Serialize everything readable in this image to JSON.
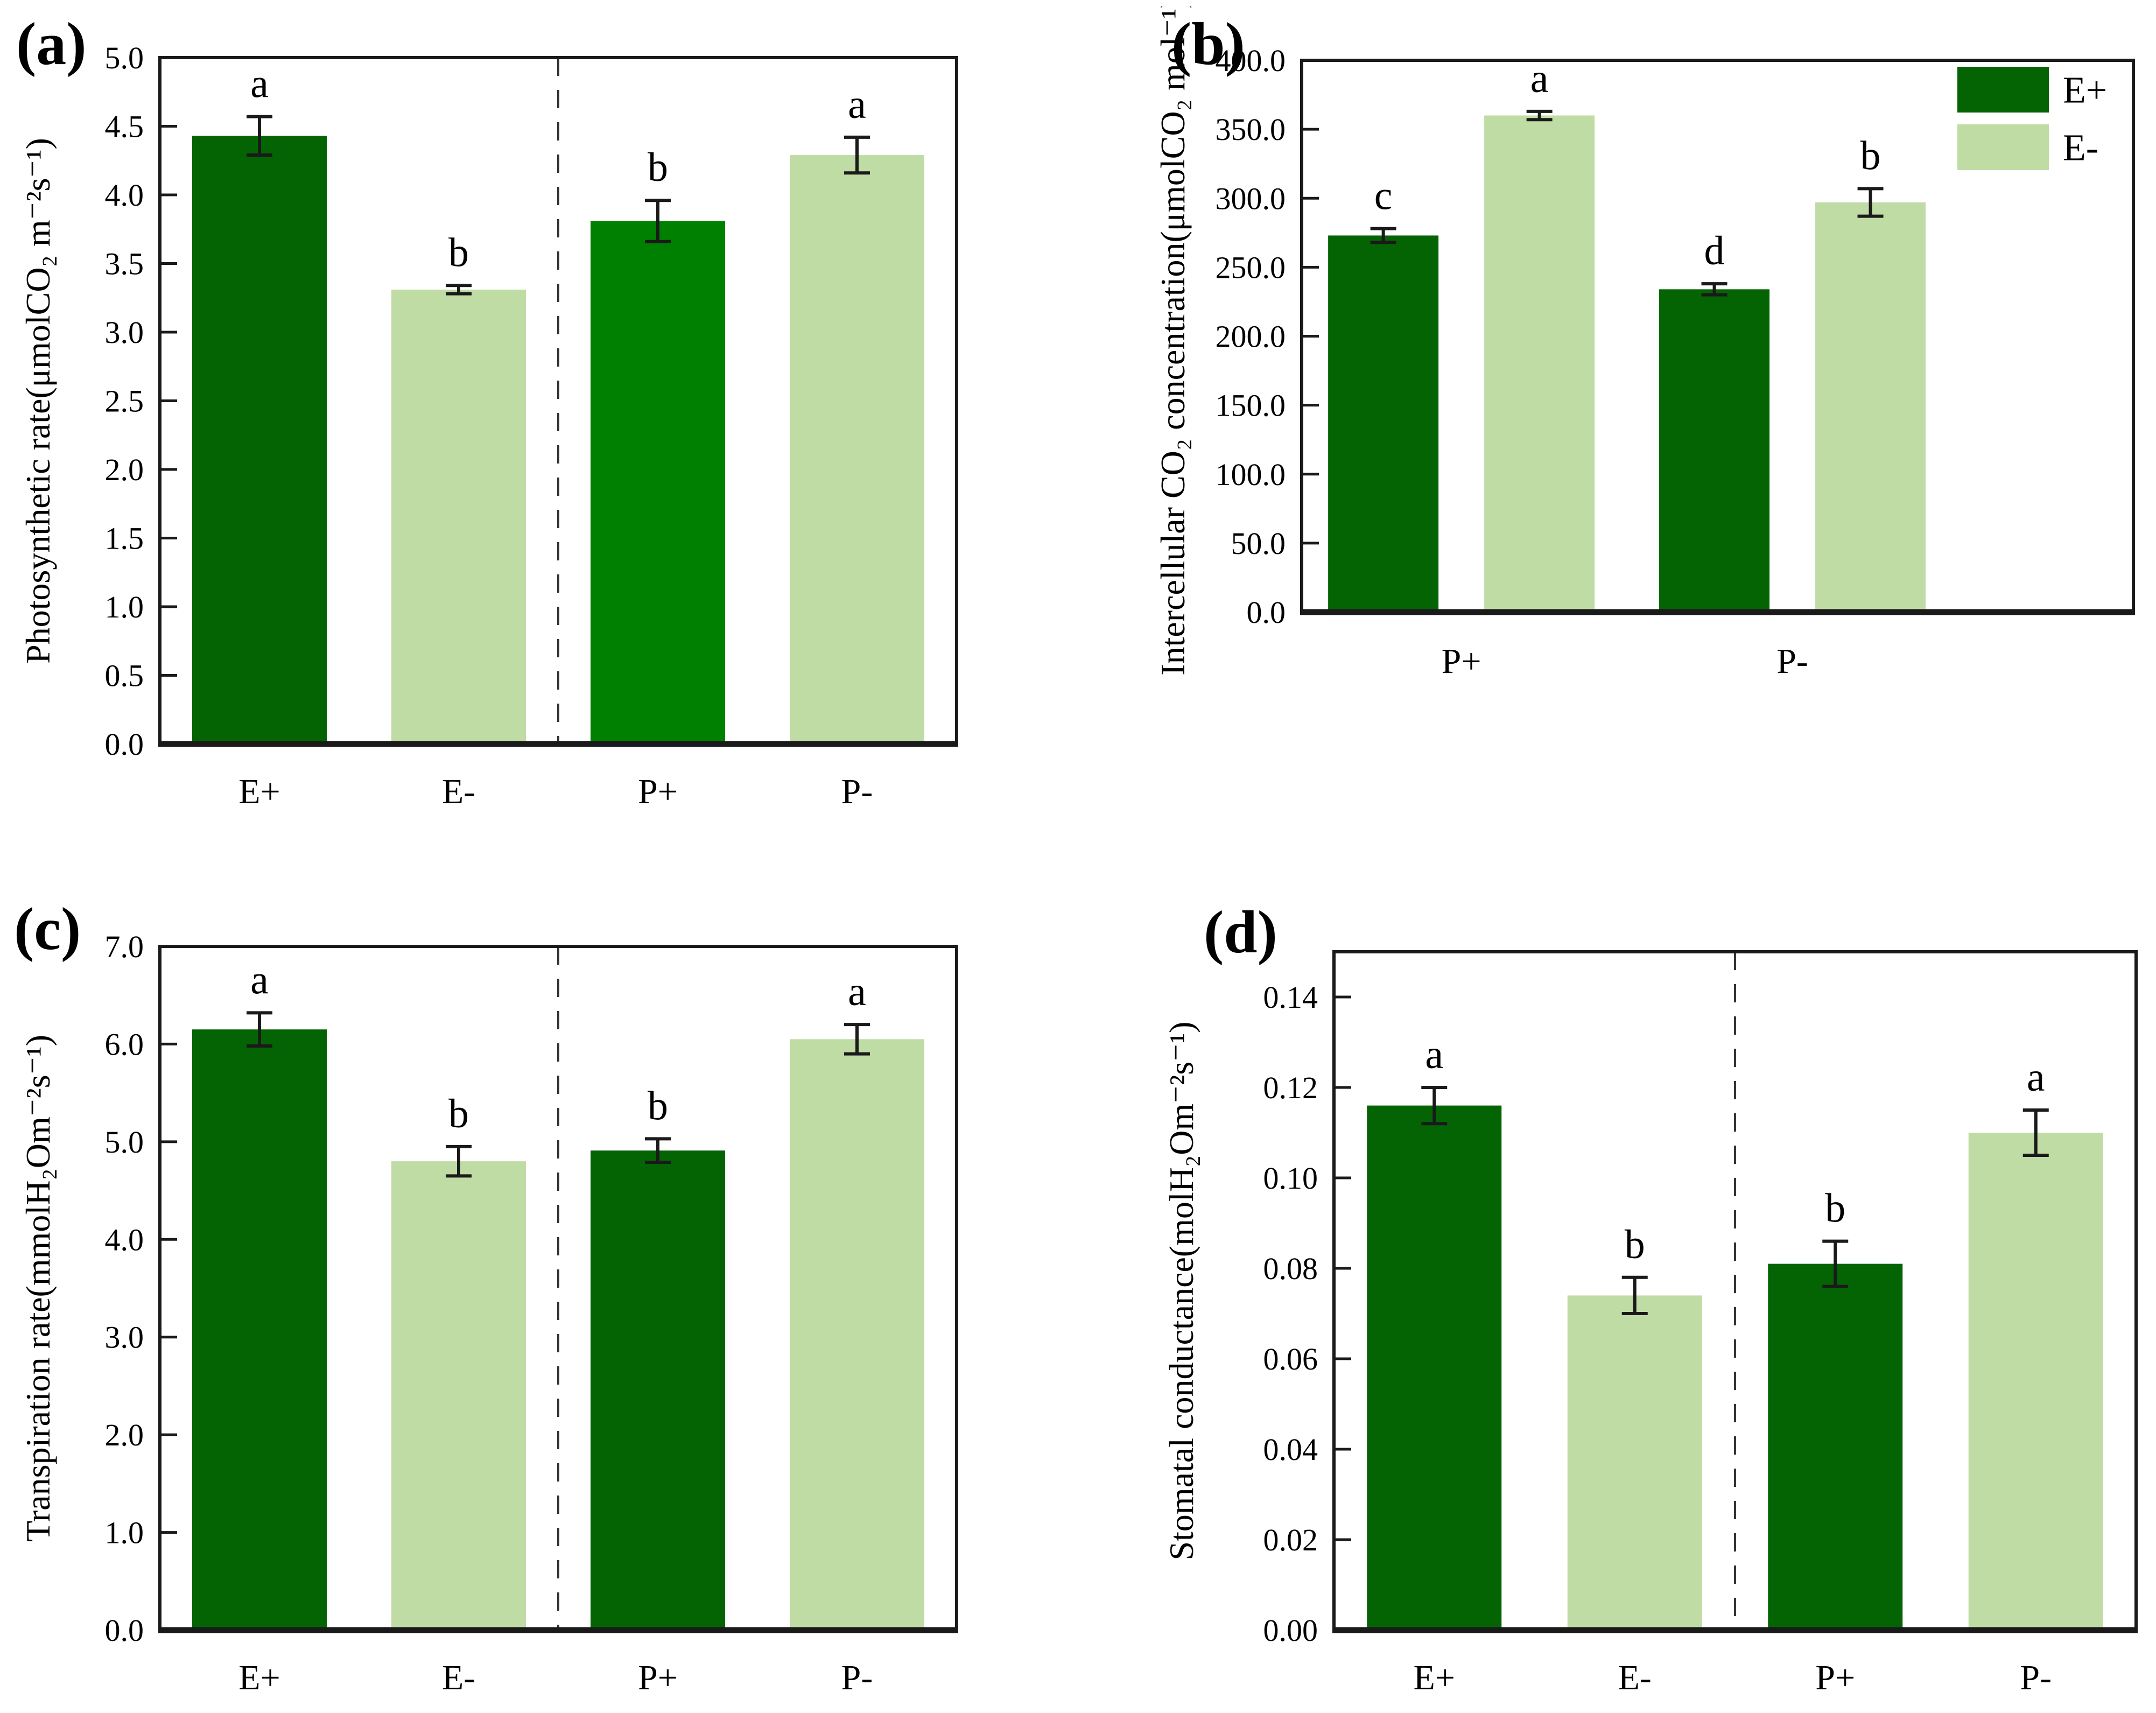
{
  "figure": {
    "colors": {
      "dark": "#046404",
      "light": "#c0dca5",
      "bright": "#008000",
      "axis": "#1a1a1a",
      "divider": "#333333",
      "text": "#000000",
      "background": "#ffffff"
    },
    "panels": [
      {
        "id": "a",
        "label": "(a)",
        "chart_data": {
          "type": "bar",
          "title": "",
          "categories": [
            "E+",
            "E-",
            "P+",
            "P-"
          ],
          "values": [
            4.43,
            3.31,
            3.81,
            4.29
          ],
          "errors": [
            0.14,
            0.03,
            0.15,
            0.13
          ],
          "letters": [
            "a",
            "b",
            "b",
            "a"
          ],
          "bar_colors": [
            "dark",
            "light",
            "bright",
            "light"
          ],
          "xlabel": "",
          "ylabel": "Photosynthetic rate(μmolCO₂ m⁻²s⁻¹)",
          "ylim": [
            0,
            5.0
          ],
          "ytick_step": 0.5,
          "ytick_decimals": 1,
          "grid": false,
          "divider_between_groups": true
        }
      },
      {
        "id": "b",
        "label": "(b)",
        "chart_data": {
          "type": "grouped-bar",
          "title": "",
          "categories": [
            "P+",
            "P-"
          ],
          "series": [
            {
              "name": "E+",
              "color": "dark",
              "values": [
                273.0,
                234.0
              ],
              "errors": [
                5.0,
                4.0
              ],
              "letters": [
                "c",
                "d"
              ]
            },
            {
              "name": "E-",
              "color": "light",
              "values": [
                360.0,
                297.0
              ],
              "errors": [
                3.0,
                10.0
              ],
              "letters": [
                "a",
                "b"
              ]
            }
          ],
          "xlabel": "",
          "ylabel": "Intercellular CO₂ concentration(μmolCO₂ mol⁻¹)",
          "ylim": [
            0,
            400.0
          ],
          "ytick_step": 50.0,
          "ytick_decimals": 1,
          "grid": false,
          "legend": {
            "position": "top-right",
            "items": [
              {
                "label": "E+",
                "color": "dark"
              },
              {
                "label": "E-",
                "color": "light"
              }
            ]
          },
          "divider_between_groups": false
        }
      },
      {
        "id": "c",
        "label": "(c)",
        "chart_data": {
          "type": "bar",
          "title": "",
          "categories": [
            "E+",
            "E-",
            "P+",
            "P-"
          ],
          "values": [
            6.15,
            4.8,
            4.91,
            6.05
          ],
          "errors": [
            0.17,
            0.15,
            0.12,
            0.15
          ],
          "letters": [
            "a",
            "b",
            "b",
            "a"
          ],
          "bar_colors": [
            "dark",
            "light",
            "dark",
            "light"
          ],
          "xlabel": "",
          "ylabel": "Transpiration rate(mmolH₂Om⁻²s⁻¹)",
          "ylim": [
            0,
            7.0
          ],
          "ytick_step": 1.0,
          "ytick_decimals": 1,
          "grid": false,
          "divider_between_groups": true
        }
      },
      {
        "id": "d",
        "label": "(d)",
        "chart_data": {
          "type": "bar",
          "title": "",
          "categories": [
            "E+",
            "E-",
            "P+",
            "P-"
          ],
          "values": [
            0.116,
            0.074,
            0.081,
            0.11
          ],
          "errors": [
            0.004,
            0.004,
            0.005,
            0.005
          ],
          "letters": [
            "a",
            "b",
            "b",
            "a"
          ],
          "bar_colors": [
            "dark",
            "light",
            "dark",
            "light"
          ],
          "xlabel": "",
          "ylabel": "Stomatal conductance(molH₂Om⁻²s⁻¹)",
          "ylim": [
            0,
            0.15
          ],
          "ytick_step": 0.02,
          "ytick_decimals": 2,
          "grid": false,
          "divider_between_groups": true
        }
      }
    ]
  }
}
